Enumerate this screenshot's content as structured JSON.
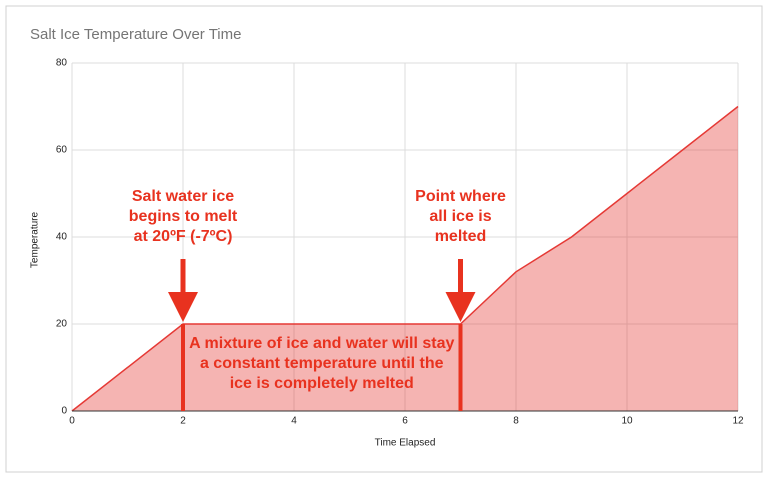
{
  "chart_data": {
    "type": "area",
    "title": "Salt Ice Temperature Over Time",
    "x_label": "Time Elapsed",
    "y_label": "Temperature",
    "x": [
      0,
      2,
      7,
      8,
      9,
      10,
      11,
      12
    ],
    "series": [
      {
        "name": "Temperature",
        "color": "#e53935",
        "values": [
          0,
          20,
          20,
          32,
          40,
          50,
          60,
          70
        ]
      }
    ],
    "xlim": [
      0,
      12
    ],
    "xticks": [
      0,
      2,
      4,
      6,
      8,
      10,
      12
    ],
    "ylim": [
      0,
      80
    ],
    "yticks": [
      0,
      20,
      40,
      60,
      80
    ],
    "grid": true,
    "annotations": [
      {
        "lines": [
          "Salt water ice",
          "begins to melt",
          "at 20ºF (-7ºC)"
        ]
      },
      {
        "lines": [
          "Point where",
          "all ice is",
          "melted"
        ]
      },
      {
        "lines": [
          "A mixture of ice and water will stay",
          "a constant temperature until the",
          "ice is completely melted"
        ]
      }
    ]
  }
}
